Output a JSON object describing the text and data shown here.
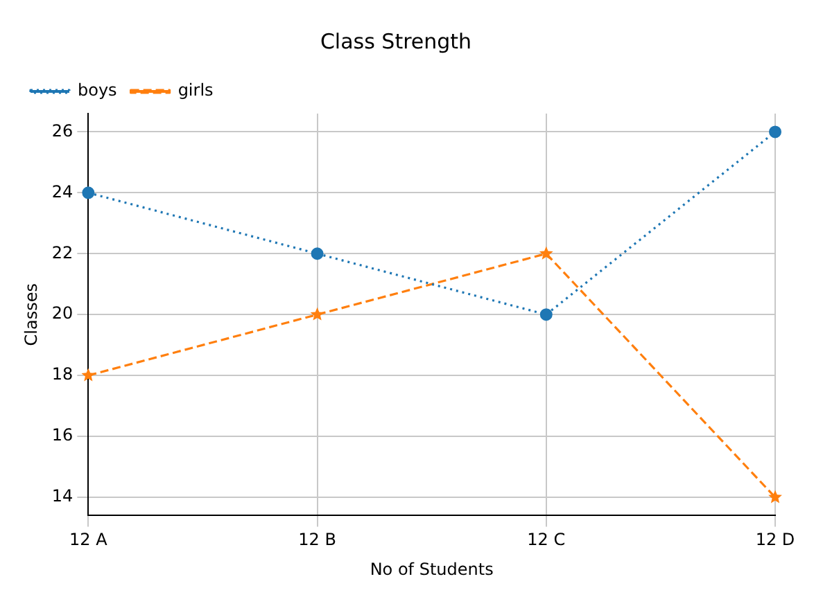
{
  "chart_data": {
    "type": "line",
    "title": "Class Strength",
    "xlabel": "No of Students",
    "ylabel": "Classes",
    "categories": [
      "12 A",
      "12 B",
      "12 C",
      "12 D"
    ],
    "series": [
      {
        "name": "boys",
        "color": "#1f77b4",
        "values": [
          24,
          22,
          20,
          26
        ],
        "marker": "circle",
        "line_style": "dotted"
      },
      {
        "name": "girls",
        "color": "#ff7f0e",
        "values": [
          18,
          20,
          22,
          14
        ],
        "marker": "star",
        "line_style": "dashed"
      }
    ],
    "ylim": [
      13.4,
      26.6
    ],
    "yticks": [
      14,
      16,
      18,
      20,
      22,
      24,
      26
    ],
    "grid": true,
    "legend": "top left"
  }
}
